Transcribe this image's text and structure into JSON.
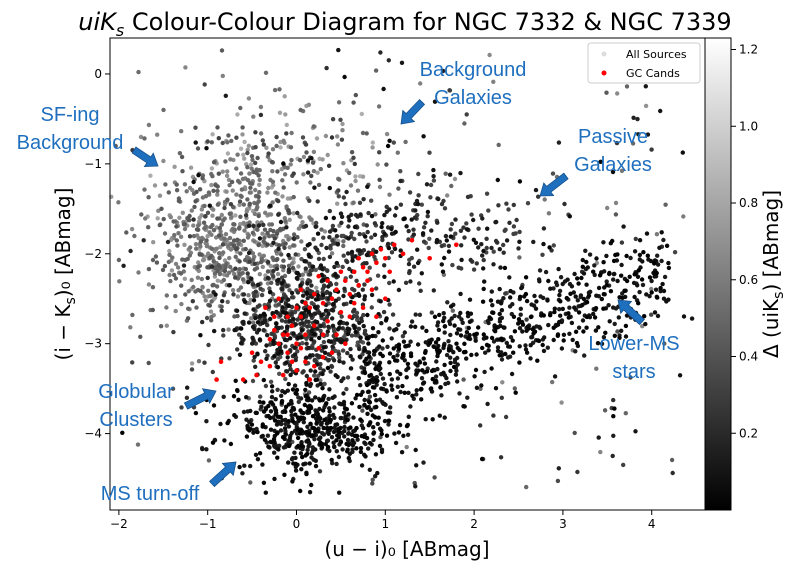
{
  "chart_data": {
    "type": "scatter",
    "title": "uiK_s Colour-Colour Diagram for NGC 7332 & NGC 7339",
    "title_parts": {
      "italic": "uiK",
      "sub": "s",
      "rest": " Colour-Colour Diagram for NGC 7332 & NGC 7339"
    },
    "xlabel": "(u − i)₀ [ABmag]",
    "ylabel": "(i − K_s)₀ [ABmag]",
    "ylabel_parts": {
      "pre": "(i − K",
      "sub": "s",
      "post": ")₀ [ABmag]"
    },
    "xlim": [
      -2.1,
      4.6
    ],
    "ylim": [
      -4.85,
      0.4
    ],
    "xticks": [
      -2,
      -1,
      0,
      1,
      2,
      3,
      4
    ],
    "yticks": [
      0,
      -1,
      -2,
      -3,
      -4
    ],
    "legend": {
      "position": "top-right",
      "entries": [
        "All Sources",
        "GC Cands"
      ]
    },
    "colorbar": {
      "label": "Δ (uiK_s) [ABmag]",
      "label_parts": {
        "pre": "Δ (uiK",
        "sub": "s",
        "post": ") [ABmag]"
      },
      "ticks": [
        0.2,
        0.4,
        0.6,
        0.8,
        1.0,
        1.2
      ],
      "range": [
        0.0,
        1.23
      ],
      "colormap": "gray"
    },
    "colors": {
      "gc_cands": "#ff0000",
      "annotation": "#1f6fbf"
    },
    "populations": [
      {
        "name": "Lower-MS stars",
        "n": 650,
        "x": [
          0.7,
          4.2
        ],
        "y_line": [
          -3.4,
          -2.2
        ],
        "y_scatter": 0.28,
        "delta": [
          0.0,
          0.15
        ]
      },
      {
        "name": "MS turn-off",
        "n": 500,
        "x_mean": 0.2,
        "x_sd": 0.45,
        "y_mean": -3.95,
        "y_sd": 0.25,
        "delta": [
          0.0,
          0.15
        ]
      },
      {
        "name": "Globular Clusters",
        "n": 700,
        "x_mean": 0.1,
        "x_sd": 0.45,
        "y_mean": -2.75,
        "y_sd": 0.4,
        "delta": [
          0.05,
          0.4
        ]
      },
      {
        "name": "SF-ing Background",
        "n": 600,
        "x_mean": -0.75,
        "x_sd": 0.45,
        "y_mean": -1.9,
        "y_sd": 0.45,
        "delta": [
          0.4,
          0.75
        ]
      },
      {
        "name": "Passive Galaxies",
        "n": 300,
        "x_mean": 1.3,
        "x_sd": 0.8,
        "y_mean": -1.8,
        "y_sd": 0.3,
        "delta": [
          0.05,
          0.35
        ]
      },
      {
        "name": "Background Galaxies",
        "n": 250,
        "x_mean": -0.2,
        "x_sd": 0.7,
        "y_mean": -1.1,
        "y_sd": 0.45,
        "delta": [
          0.3,
          0.85
        ]
      },
      {
        "name": "scatter",
        "n": 250,
        "x_range": [
          -2.0,
          4.5
        ],
        "y_range": [
          -4.6,
          0.3
        ],
        "delta": [
          0.0,
          0.7
        ]
      }
    ],
    "gc_candidates": [
      {
        "x": -0.3,
        "y": -2.95
      },
      {
        "x": -0.25,
        "y": -2.85
      },
      {
        "x": -0.2,
        "y": -3.0
      },
      {
        "x": -0.15,
        "y": -2.9
      },
      {
        "x": -0.1,
        "y": -3.1
      },
      {
        "x": -0.05,
        "y": -2.8
      },
      {
        "x": 0.0,
        "y": -3.0
      },
      {
        "x": 0.05,
        "y": -2.7
      },
      {
        "x": 0.1,
        "y": -2.9
      },
      {
        "x": 0.15,
        "y": -2.6
      },
      {
        "x": 0.2,
        "y": -2.8
      },
      {
        "x": 0.25,
        "y": -3.05
      },
      {
        "x": 0.3,
        "y": -2.55
      },
      {
        "x": 0.35,
        "y": -2.75
      },
      {
        "x": 0.4,
        "y": -2.5
      },
      {
        "x": 0.45,
        "y": -2.4
      },
      {
        "x": 0.5,
        "y": -2.65
      },
      {
        "x": 0.55,
        "y": -2.3
      },
      {
        "x": 0.6,
        "y": -2.45
      },
      {
        "x": 0.65,
        "y": -2.2
      },
      {
        "x": 0.7,
        "y": -2.35
      },
      {
        "x": 0.75,
        "y": -2.15
      },
      {
        "x": 0.8,
        "y": -2.3
      },
      {
        "x": 0.85,
        "y": -2.0
      },
      {
        "x": 0.9,
        "y": -2.1
      },
      {
        "x": 0.95,
        "y": -1.95
      },
      {
        "x": 1.0,
        "y": -2.05
      },
      {
        "x": 1.1,
        "y": -1.9
      },
      {
        "x": 1.2,
        "y": -2.0
      },
      {
        "x": 1.3,
        "y": -1.85
      },
      {
        "x": 1.5,
        "y": -2.05
      },
      {
        "x": 1.8,
        "y": -1.9
      },
      {
        "x": -0.4,
        "y": -3.2
      },
      {
        "x": -0.35,
        "y": -2.6
      },
      {
        "x": -0.45,
        "y": -3.35
      },
      {
        "x": -0.5,
        "y": -3.1
      },
      {
        "x": -0.6,
        "y": -3.4
      },
      {
        "x": -0.85,
        "y": -3.2
      },
      {
        "x": -0.9,
        "y": -3.4
      },
      {
        "x": -0.2,
        "y": -2.5
      },
      {
        "x": -0.1,
        "y": -2.7
      },
      {
        "x": 0.0,
        "y": -2.6
      },
      {
        "x": 0.1,
        "y": -3.2
      },
      {
        "x": 0.2,
        "y": -2.45
      },
      {
        "x": 0.3,
        "y": -3.15
      },
      {
        "x": 0.0,
        "y": -3.3
      },
      {
        "x": -0.15,
        "y": -3.35
      },
      {
        "x": 0.15,
        "y": -3.4
      },
      {
        "x": 0.45,
        "y": -2.9
      },
      {
        "x": 0.6,
        "y": -2.7
      },
      {
        "x": 0.65,
        "y": -2.55
      },
      {
        "x": 0.75,
        "y": -2.6
      },
      {
        "x": 0.85,
        "y": -2.4
      },
      {
        "x": 0.9,
        "y": -2.7
      },
      {
        "x": 0.55,
        "y": -3.0
      },
      {
        "x": 0.35,
        "y": -2.3
      },
      {
        "x": 0.25,
        "y": -2.25
      },
      {
        "x": 0.05,
        "y": -2.4
      },
      {
        "x": -0.05,
        "y": -3.2
      },
      {
        "x": 0.2,
        "y": -3.25
      },
      {
        "x": 0.5,
        "y": -2.2
      },
      {
        "x": 0.7,
        "y": -2.05
      },
      {
        "x": 1.0,
        "y": -2.5
      },
      {
        "x": 1.05,
        "y": -2.2
      },
      {
        "x": -0.3,
        "y": -3.25
      },
      {
        "x": -0.25,
        "y": -2.7
      },
      {
        "x": 0.4,
        "y": -3.1
      },
      {
        "x": 0.1,
        "y": -2.55
      },
      {
        "x": 0.8,
        "y": -2.2
      },
      {
        "x": 0.3,
        "y": -2.9
      },
      {
        "x": -0.1,
        "y": -2.9
      },
      {
        "x": 0.05,
        "y": -3.05
      }
    ],
    "annotations": [
      {
        "key": "sfing",
        "lines": [
          "SF-ing",
          "Background"
        ]
      },
      {
        "key": "bggal",
        "lines": [
          "Background",
          "Galaxies"
        ]
      },
      {
        "key": "passive",
        "lines": [
          "Passive",
          "Galaxies"
        ]
      },
      {
        "key": "lowerms",
        "lines": [
          "Lower-MS",
          "stars"
        ]
      },
      {
        "key": "gc",
        "lines": [
          "Globular",
          "Clusters"
        ]
      },
      {
        "key": "msto",
        "lines": [
          "MS turn-off"
        ]
      }
    ]
  }
}
